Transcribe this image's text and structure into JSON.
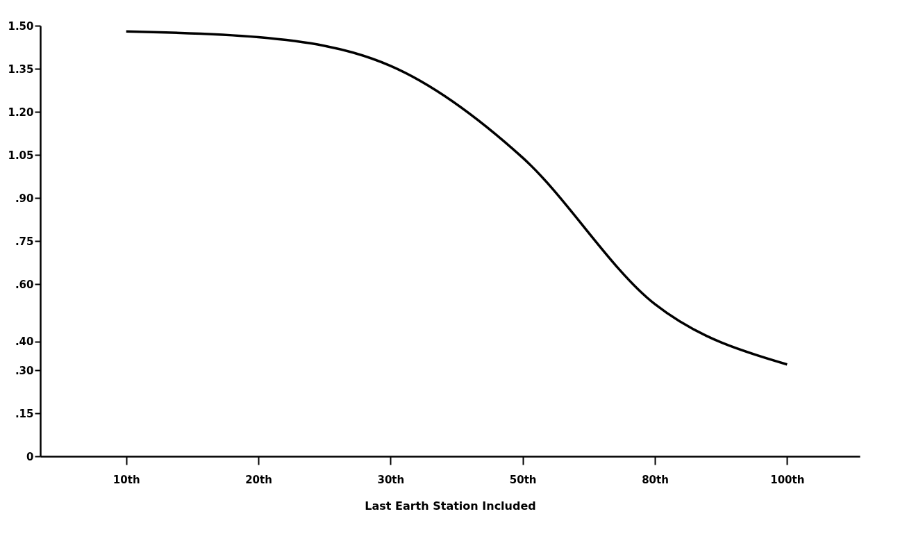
{
  "chart_data": {
    "type": "line",
    "xlabel": "Last Earth Station Included",
    "categories": [
      "10th",
      "20th",
      "30th",
      "50th",
      "80th",
      "100th"
    ],
    "series": [
      {
        "color": "#000000",
        "values": [
          1.48,
          1.46,
          1.36,
          1.04,
          0.53,
          0.32
        ]
      }
    ],
    "ylim": [
      0,
      1.5
    ],
    "yticks": [
      {
        "value": 0,
        "label": "0"
      },
      {
        "value": 0.15,
        "label": ".15"
      },
      {
        "value": 0.3,
        "label": ".30"
      },
      {
        "value": 0.4,
        "label": ".40"
      },
      {
        "value": 0.6,
        "label": ".60"
      },
      {
        "value": 0.75,
        "label": ".75"
      },
      {
        "value": 0.9,
        "label": ".90"
      },
      {
        "value": 1.05,
        "label": "1.05"
      },
      {
        "value": 1.2,
        "label": "1.20"
      },
      {
        "value": 1.35,
        "label": "1.35"
      },
      {
        "value": 1.5,
        "label": "1.50"
      }
    ],
    "grid": false,
    "marker": "none",
    "line_style": "solid"
  }
}
